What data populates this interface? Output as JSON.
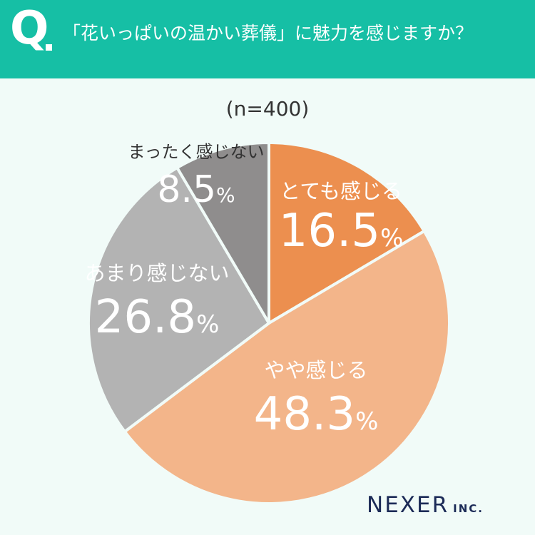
{
  "header": {
    "q": "Q",
    "question": "「花いっぱいの温かい葬儀」に魅力を感じますか？"
  },
  "sample": "(n=400)",
  "chart_data": {
    "type": "pie",
    "title": "「花いっぱいの温かい葬儀」に魅力を感じますか？",
    "sample_size": "n=400",
    "slices": [
      {
        "label": "とても感じる",
        "value": 16.5,
        "display": "16.5",
        "color": "#ec8f4f",
        "text_color": "#ffffff"
      },
      {
        "label": "やや感じる",
        "value": 48.3,
        "display": "48.3",
        "color": "#f3b58a",
        "text_color": "#ffffff"
      },
      {
        "label": "あまり感じない",
        "value": 26.8,
        "display": "26.8",
        "color": "#b3b3b3",
        "text_color": "#ffffff"
      },
      {
        "label": "まったく感じない",
        "value": 8.5,
        "display": "8.5",
        "color": "#8f8d8d",
        "text_color": "#333333"
      }
    ],
    "unit": "%"
  },
  "logo": {
    "name": "NEXER",
    "suffix": "INC."
  }
}
